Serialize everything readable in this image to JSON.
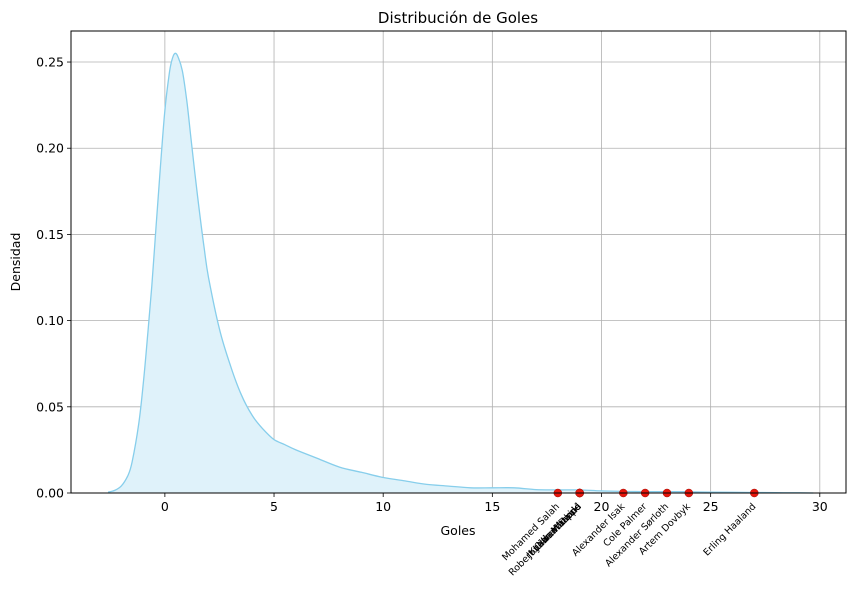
{
  "chart_data": {
    "type": "area",
    "title": "Distribución de Goles",
    "xlabel": "Goles",
    "ylabel": "Densidad",
    "xlim": [
      -4.3,
      31.2
    ],
    "ylim": [
      0,
      0.268
    ],
    "xticks": [
      0,
      5,
      10,
      15,
      20,
      25,
      30
    ],
    "yticks": [
      0.0,
      0.05,
      0.1,
      0.15,
      0.2,
      0.25
    ],
    "xtick_labels": [
      "0",
      "5",
      "10",
      "15",
      "20",
      "25",
      "30"
    ],
    "ytick_labels": [
      "0.00",
      "0.05",
      "0.10",
      "0.15",
      "0.20",
      "0.25"
    ],
    "grid": true,
    "series": [
      {
        "kind": "kde",
        "color": "#87ceeb",
        "fill_color": "#dff2fa",
        "x": [
          -2.6,
          -2.3,
          -2.0,
          -1.7,
          -1.5,
          -1.2,
          -1.0,
          -0.8,
          -0.6,
          -0.4,
          -0.2,
          0.0,
          0.2,
          0.3,
          0.4,
          0.5,
          0.6,
          0.8,
          1.0,
          1.2,
          1.5,
          1.8,
          2.0,
          2.5,
          3.0,
          3.5,
          4.0,
          4.5,
          5.0,
          5.5,
          6.0,
          7.0,
          8.0,
          9.0,
          10.0,
          11.0,
          12.0,
          13.0,
          14.0,
          15.0,
          16.0,
          17.0,
          18.0,
          19.0,
          20.0,
          21.0,
          22.0,
          23.0,
          24.0,
          25.0,
          26.0,
          27.0,
          28.0,
          29.0,
          29.7
        ],
        "y": [
          0.0005,
          0.0015,
          0.004,
          0.01,
          0.018,
          0.04,
          0.062,
          0.09,
          0.12,
          0.155,
          0.19,
          0.222,
          0.243,
          0.25,
          0.254,
          0.255,
          0.253,
          0.245,
          0.228,
          0.205,
          0.172,
          0.142,
          0.125,
          0.095,
          0.074,
          0.057,
          0.045,
          0.037,
          0.031,
          0.028,
          0.025,
          0.02,
          0.015,
          0.012,
          0.009,
          0.007,
          0.005,
          0.004,
          0.003,
          0.003,
          0.003,
          0.002,
          0.0018,
          0.0018,
          0.0012,
          0.0009,
          0.0008,
          0.0008,
          0.0007,
          0.0005,
          0.0004,
          0.0003,
          0.0002,
          0.0001,
          0.0
        ]
      }
    ],
    "points": {
      "color": "#e8160c",
      "items": [
        {
          "x": 18,
          "y": 0,
          "label": "Mohamed Salah"
        },
        {
          "x": 19,
          "y": 0,
          "label": "Robert Lewandowski"
        },
        {
          "x": 19,
          "y": 0,
          "label": "Kylian Mbappé"
        },
        {
          "x": 19,
          "y": 0,
          "label": "Ollie Watkins"
        },
        {
          "x": 19,
          "y": 0,
          "label": "Jonathan David"
        },
        {
          "x": 21,
          "y": 0,
          "label": "Alexander Isak"
        },
        {
          "x": 22,
          "y": 0,
          "label": "Cole Palmer"
        },
        {
          "x": 23,
          "y": 0,
          "label": "Alexander Sørloth"
        },
        {
          "x": 24,
          "y": 0,
          "label": "Artem Dovbyk"
        },
        {
          "x": 27,
          "y": 0,
          "label": "Erling Haaland"
        }
      ]
    }
  }
}
